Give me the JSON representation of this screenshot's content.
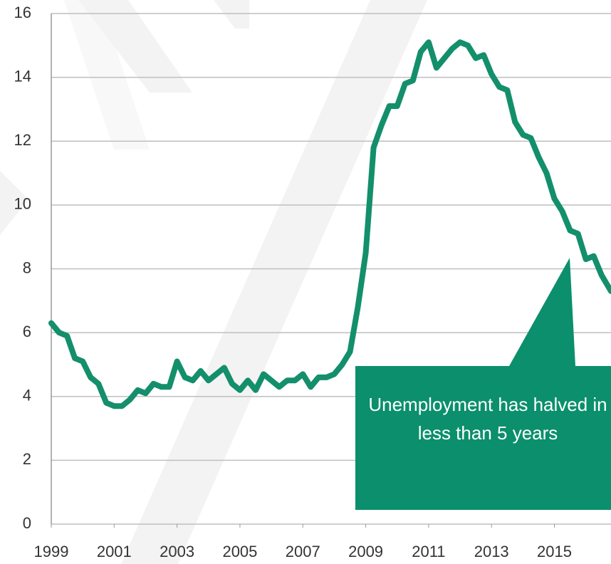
{
  "chart_data": {
    "type": "line",
    "x": [
      1999,
      1999.25,
      1999.5,
      1999.75,
      2000,
      2000.25,
      2000.5,
      2000.75,
      2001,
      2001.25,
      2001.5,
      2001.75,
      2002,
      2002.25,
      2002.5,
      2002.75,
      2003,
      2003.25,
      2003.5,
      2003.75,
      2004,
      2004.25,
      2004.5,
      2004.75,
      2005,
      2005.25,
      2005.5,
      2005.75,
      2006,
      2006.25,
      2006.5,
      2006.75,
      2007,
      2007.25,
      2007.5,
      2007.75,
      2008,
      2008.25,
      2008.5,
      2008.75,
      2009,
      2009.25,
      2009.5,
      2009.75,
      2010,
      2010.25,
      2010.5,
      2010.75,
      2011,
      2011.25,
      2011.5,
      2011.75,
      2012,
      2012.25,
      2012.5,
      2012.75,
      2013,
      2013.25,
      2013.5,
      2013.75,
      2014,
      2014.25,
      2014.5,
      2014.75,
      2015,
      2015.25,
      2015.5,
      2015.75,
      2016,
      2016.25,
      2016.5,
      2016.8
    ],
    "values": [
      6.3,
      6.0,
      5.9,
      5.2,
      5.1,
      4.6,
      4.4,
      3.8,
      3.7,
      3.7,
      3.9,
      4.2,
      4.1,
      4.4,
      4.3,
      4.3,
      5.1,
      4.6,
      4.5,
      4.8,
      4.5,
      4.7,
      4.9,
      4.4,
      4.2,
      4.5,
      4.2,
      4.7,
      4.5,
      4.3,
      4.5,
      4.5,
      4.7,
      4.3,
      4.6,
      4.6,
      4.7,
      5.0,
      5.4,
      6.8,
      8.5,
      11.8,
      12.5,
      13.1,
      13.1,
      13.8,
      13.9,
      14.8,
      15.1,
      14.3,
      14.6,
      14.9,
      15.1,
      15.0,
      14.6,
      14.7,
      14.1,
      13.7,
      13.6,
      12.6,
      12.2,
      12.1,
      11.5,
      11.0,
      10.2,
      9.8,
      9.2,
      9.1,
      8.3,
      8.4,
      7.8,
      7.3
    ],
    "color": "#138f6b",
    "xlim": [
      1999,
      2016.8
    ],
    "xticks": [
      1999,
      2001,
      2003,
      2005,
      2007,
      2009,
      2011,
      2013,
      2015
    ],
    "ylim": [
      0,
      16
    ],
    "yticks": [
      0,
      2,
      4,
      6,
      8,
      10,
      12,
      14,
      16
    ],
    "grid": true,
    "annotation": "Unemployment has halved in less than 5 years"
  }
}
